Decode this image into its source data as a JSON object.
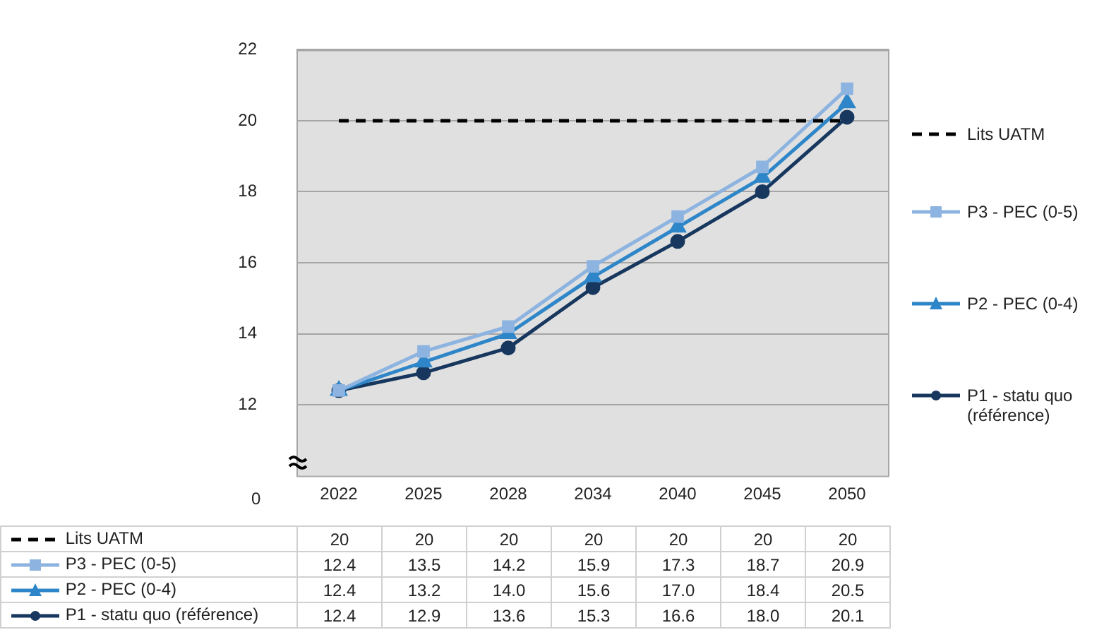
{
  "chart_data": {
    "type": "line",
    "categories": [
      "2022",
      "2025",
      "2028",
      "2034",
      "2040",
      "2045",
      "2050"
    ],
    "ylim": [
      10,
      22
    ],
    "yticks": [
      12,
      14,
      16,
      18,
      20,
      22
    ],
    "annotations": [
      "0"
    ],
    "grid": "y",
    "legend": "right",
    "series": [
      {
        "name": "Lits UATM",
        "color": "#000000",
        "line_style": "dashed",
        "marker": "none",
        "values": [
          20,
          20,
          20,
          20,
          20,
          20,
          20
        ],
        "value_labels": [
          "20",
          "20",
          "20",
          "20",
          "20",
          "20",
          "20"
        ]
      },
      {
        "name": "P3 - PEC (0-5)",
        "color": "#8db4e0",
        "line_style": "solid",
        "marker": "square",
        "values": [
          12.4,
          13.5,
          14.2,
          15.9,
          17.3,
          18.7,
          20.9
        ],
        "value_labels": [
          "12.4",
          "13.5",
          "14.2",
          "15.9",
          "17.3",
          "18.7",
          "20.9"
        ]
      },
      {
        "name": "P2 - PEC (0-4)",
        "color": "#2e86c8",
        "line_style": "solid",
        "marker": "triangle",
        "values": [
          12.4,
          13.2,
          14.0,
          15.6,
          17.0,
          18.4,
          20.5
        ],
        "value_labels": [
          "12.4",
          "13.2",
          "14.0",
          "15.6",
          "17.0",
          "18.4",
          "20.5"
        ]
      },
      {
        "name": "P1 - statu quo (référence)",
        "color": "#17375e",
        "line_style": "solid",
        "marker": "circle",
        "values": [
          12.4,
          12.9,
          13.6,
          15.3,
          16.6,
          18.0,
          20.1
        ],
        "value_labels": [
          "12.4",
          "12.9",
          "13.6",
          "15.3",
          "16.6",
          "18.0",
          "20.1"
        ]
      }
    ]
  }
}
